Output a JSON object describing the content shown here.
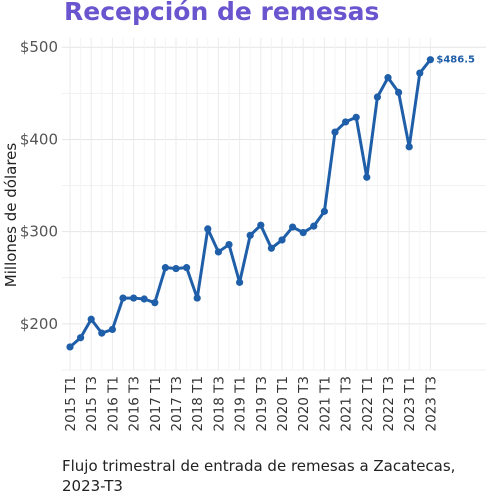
{
  "chart_data": {
    "type": "line",
    "title": "Recepción de remesas",
    "caption": "Flujo trimestral de entrada de remesas a Zacatecas, 2023-T3",
    "ylabel": "Millones de dólares",
    "xlabel": "",
    "ylim": [
      150,
      510
    ],
    "y_ticks": [
      200,
      300,
      400,
      500
    ],
    "y_tick_labels": [
      "$200",
      "$300",
      "$400",
      "$500"
    ],
    "grid": true,
    "line_color": "#1f5ea8",
    "title_color": "#6a55cf",
    "end_label": "$486.5",
    "x_tick_labels": [
      "2015 T1",
      "2015 T3",
      "2016 T1",
      "2016 T3",
      "2017 T1",
      "2017 T3",
      "2018 T1",
      "2018 T3",
      "2019 T1",
      "2019 T3",
      "2020 T1",
      "2020 T3",
      "2021 T1",
      "2021 T3",
      "2022 T1",
      "2022 T3",
      "2023 T1",
      "2023 T3"
    ],
    "x": [
      "2015 T1",
      "2015 T2",
      "2015 T3",
      "2015 T4",
      "2016 T1",
      "2016 T2",
      "2016 T3",
      "2016 T4",
      "2017 T1",
      "2017 T2",
      "2017 T3",
      "2017 T4",
      "2018 T1",
      "2018 T2",
      "2018 T3",
      "2018 T4",
      "2019 T1",
      "2019 T2",
      "2019 T3",
      "2019 T4",
      "2020 T1",
      "2020 T2",
      "2020 T3",
      "2020 T4",
      "2021 T1",
      "2021 T2",
      "2021 T3",
      "2021 T4",
      "2022 T1",
      "2022 T2",
      "2022 T3",
      "2022 T4",
      "2023 T1",
      "2023 T2",
      "2023 T3"
    ],
    "values": [
      175,
      185,
      205,
      190,
      194,
      228,
      228,
      227,
      223,
      261,
      260,
      261,
      228,
      303,
      278,
      286,
      245,
      296,
      307,
      282,
      291,
      305,
      299,
      306,
      322,
      408,
      419,
      424,
      359,
      446,
      467,
      451,
      392,
      472,
      486.5
    ]
  }
}
